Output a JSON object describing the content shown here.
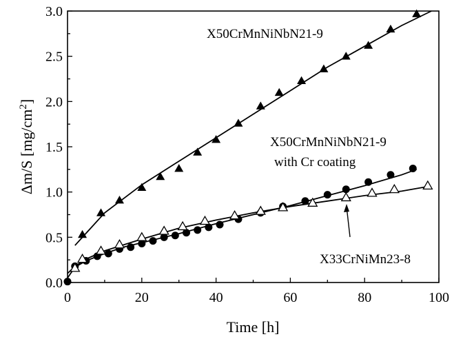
{
  "chart_data": {
    "type": "scatter",
    "xlabel": "Time [h]",
    "ylabel_main": "Δm/S [mg/cm",
    "ylabel_sup": "2",
    "ylabel_close": "]",
    "xlim": [
      0,
      100
    ],
    "ylim": [
      0,
      3.0
    ],
    "x_ticks": [
      "0",
      "20",
      "40",
      "60",
      "80",
      "100"
    ],
    "y_ticks": [
      "0.0",
      "0.5",
      "1.0",
      "1.5",
      "2.0",
      "2.5",
      "3.0"
    ],
    "grid": false,
    "series": [
      {
        "marker": "filled-triangle",
        "x": [
          4,
          9,
          14,
          20,
          25,
          30,
          35,
          40,
          46,
          52,
          57,
          63,
          69,
          75,
          81,
          87,
          94
        ],
        "y": [
          0.53,
          0.77,
          0.91,
          1.05,
          1.17,
          1.26,
          1.44,
          1.58,
          1.76,
          1.95,
          2.1,
          2.23,
          2.36,
          2.5,
          2.62,
          2.8,
          2.97
        ],
        "fit": {
          "x": [
            2,
            10,
            20,
            30,
            40,
            50,
            60,
            70,
            80,
            90,
            98
          ],
          "y": [
            0.41,
            0.77,
            1.08,
            1.34,
            1.6,
            1.86,
            2.12,
            2.38,
            2.61,
            2.84,
            3.0
          ]
        }
      },
      {
        "marker": "filled-circle",
        "x": [
          0,
          2,
          5,
          8,
          11,
          14,
          17,
          20,
          23,
          26,
          29,
          32,
          35,
          38,
          41,
          46,
          52,
          58,
          64,
          70,
          75,
          81,
          87,
          93
        ],
        "y": [
          0.01,
          0.18,
          0.24,
          0.29,
          0.32,
          0.37,
          0.39,
          0.43,
          0.46,
          0.5,
          0.52,
          0.55,
          0.58,
          0.61,
          0.64,
          0.7,
          0.77,
          0.84,
          0.9,
          0.97,
          1.03,
          1.11,
          1.19,
          1.26
        ],
        "fit": {
          "x": [
            0,
            2,
            5,
            10,
            15,
            20,
            30,
            40,
            50,
            60,
            70,
            80,
            90,
            94
          ],
          "y": [
            0.05,
            0.17,
            0.24,
            0.32,
            0.39,
            0.44,
            0.54,
            0.65,
            0.75,
            0.85,
            0.96,
            1.07,
            1.19,
            1.25
          ]
        }
      },
      {
        "marker": "open-triangle",
        "x": [
          2,
          4,
          9,
          14,
          20,
          26,
          31,
          37,
          45,
          52,
          58,
          66,
          75,
          82,
          88,
          97
        ],
        "y": [
          0.16,
          0.26,
          0.35,
          0.42,
          0.5,
          0.57,
          0.62,
          0.68,
          0.74,
          0.79,
          0.83,
          0.88,
          0.94,
          0.99,
          1.03,
          1.07
        ],
        "fit": {
          "x": [
            0,
            2,
            5,
            10,
            20,
            30,
            40,
            50,
            60,
            70,
            80,
            90,
            97
          ],
          "y": [
            0.1,
            0.18,
            0.26,
            0.35,
            0.48,
            0.6,
            0.69,
            0.77,
            0.84,
            0.9,
            0.96,
            1.01,
            1.06
          ]
        }
      }
    ],
    "annotations": [
      {
        "text": "X50CrMnNiNbN21-9"
      },
      {
        "text": "X50CrMnNiNbN21-9"
      },
      {
        "text": "with Cr coating"
      },
      {
        "text": "X33CrNiMn23-8"
      }
    ]
  }
}
